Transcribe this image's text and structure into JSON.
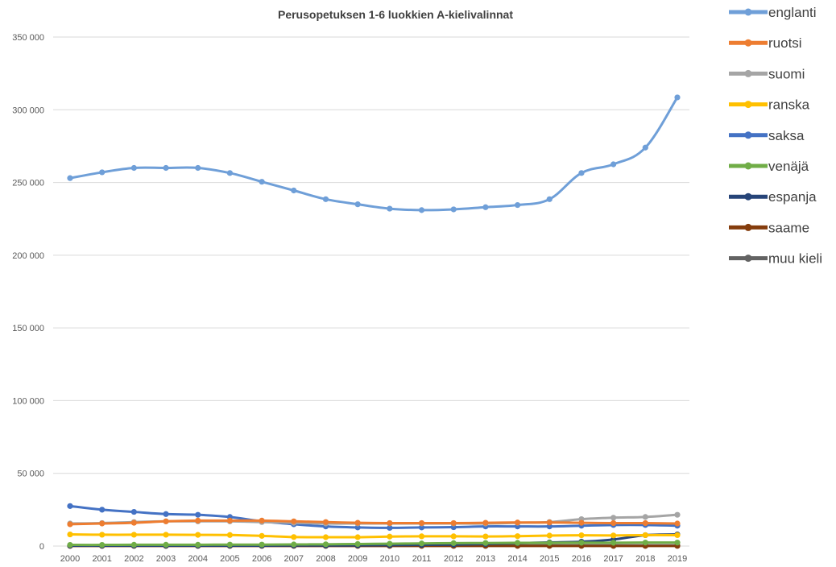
{
  "chart_data": {
    "type": "line",
    "title": "Perusopetuksen 1-6 luokkien A-kielivalinnat",
    "xlabel": "",
    "ylabel": "",
    "x": [
      "2000",
      "2001",
      "2002",
      "2003",
      "2004",
      "2005",
      "2006",
      "2007",
      "2008",
      "2009",
      "2010",
      "2011",
      "2012",
      "2013",
      "2014",
      "2015",
      "2016",
      "2017",
      "2018",
      "2019"
    ],
    "ylim": [
      0,
      350000
    ],
    "yticks": [
      0,
      50000,
      100000,
      150000,
      200000,
      250000,
      300000,
      350000
    ],
    "ytick_labels": [
      "0",
      "50 000",
      "100 000",
      "150 000",
      "200 000",
      "250 000",
      "300 000",
      "350 000"
    ],
    "grid": true,
    "legend_position": "right",
    "series": [
      {
        "name": "englanti",
        "color": "#6f9fd8",
        "values": [
          253000,
          257000,
          260000,
          260000,
          260000,
          256500,
          250500,
          244500,
          238500,
          235000,
          232000,
          231000,
          231500,
          233000,
          234500,
          238500,
          256500,
          262500,
          274000,
          308500
        ]
      },
      {
        "name": "ruotsi",
        "color": "#ed7d31",
        "values": [
          15000,
          15500,
          16000,
          17000,
          17500,
          17500,
          17500,
          17000,
          16500,
          16000,
          15800,
          15800,
          15800,
          16000,
          16200,
          16200,
          16000,
          15800,
          15800,
          15500
        ]
      },
      {
        "name": "suomi",
        "color": "#a5a5a5",
        "values": [
          15500,
          15800,
          16500,
          17000,
          17000,
          17000,
          16500,
          16000,
          15500,
          15500,
          15500,
          15500,
          15500,
          15500,
          16000,
          16500,
          18500,
          19500,
          20000,
          21500
        ]
      },
      {
        "name": "ranska",
        "color": "#ffc000",
        "values": [
          8000,
          7800,
          7800,
          7800,
          7700,
          7600,
          7000,
          6200,
          6100,
          6100,
          6500,
          6700,
          6700,
          6600,
          6800,
          7200,
          7400,
          7300,
          7500,
          7500
        ]
      },
      {
        "name": "saksa",
        "color": "#4472c4",
        "values": [
          27500,
          25000,
          23500,
          22000,
          21500,
          20000,
          17000,
          15000,
          13500,
          12800,
          12500,
          12800,
          13000,
          13500,
          13500,
          13500,
          14000,
          14500,
          14500,
          14000
        ]
      },
      {
        "name": "venäjä",
        "color": "#70ad47",
        "values": [
          800,
          800,
          900,
          900,
          900,
          1000,
          1000,
          1100,
          1200,
          1400,
          1600,
          1800,
          2000,
          2100,
          2200,
          2200,
          2300,
          2300,
          2400,
          2400
        ]
      },
      {
        "name": "espanja",
        "color": "#264478",
        "values": [
          300,
          300,
          300,
          300,
          300,
          300,
          300,
          400,
          400,
          500,
          600,
          800,
          1000,
          1400,
          2000,
          2500,
          3000,
          4500,
          7500,
          8000
        ]
      },
      {
        "name": "saame",
        "color": "#843c0c",
        "values": [
          100,
          100,
          100,
          100,
          100,
          100,
          100,
          100,
          100,
          100,
          100,
          100,
          100,
          100,
          100,
          100,
          100,
          100,
          100,
          100
        ]
      },
      {
        "name": "muu kieli",
        "color": "#636363",
        "values": [
          500,
          500,
          500,
          500,
          500,
          500,
          500,
          500,
          500,
          500,
          500,
          500,
          500,
          500,
          500,
          500,
          500,
          500,
          500,
          500
        ]
      }
    ]
  }
}
